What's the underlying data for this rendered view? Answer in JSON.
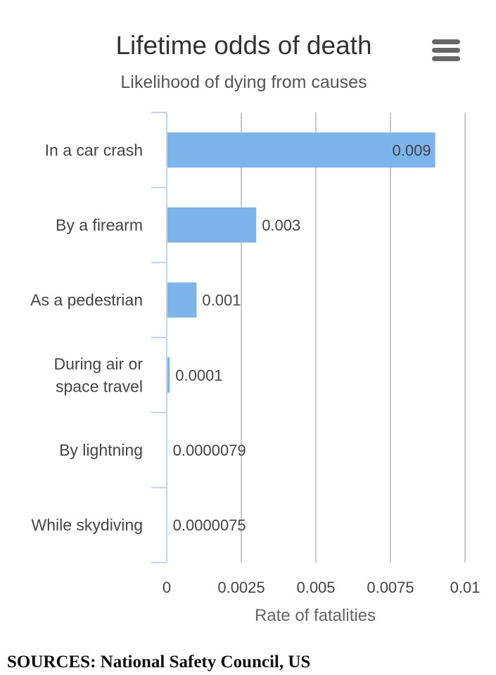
{
  "chart_data": {
    "type": "bar",
    "orientation": "horizontal",
    "title": "Lifetime odds of death",
    "subtitle": "Likelihood of dying from causes",
    "categories": [
      [
        "In a car crash"
      ],
      [
        "By a firearm"
      ],
      [
        "As a pedestrian"
      ],
      [
        "During air or",
        "space travel"
      ],
      [
        "By lightning"
      ],
      [
        "While skydiving"
      ]
    ],
    "values": [
      0.009,
      0.003,
      0.001,
      0.0001,
      7.9e-06,
      7.5e-06
    ],
    "value_labels": [
      "0.009",
      "0.003",
      "0.001",
      "0.0001",
      "0.0000079",
      "0.0000075"
    ],
    "xlabel": "Rate of fatalities",
    "xlim": [
      0,
      0.01
    ],
    "xticks": [
      0,
      0.0025,
      0.005,
      0.0075,
      0.01
    ],
    "xtick_labels": [
      "0",
      "0.0025",
      "0.005",
      "0.0075",
      "0.01"
    ],
    "grid": true,
    "bar_color": "#7cb5ec"
  },
  "source_note": "SOURCES: National Safety Council, US"
}
